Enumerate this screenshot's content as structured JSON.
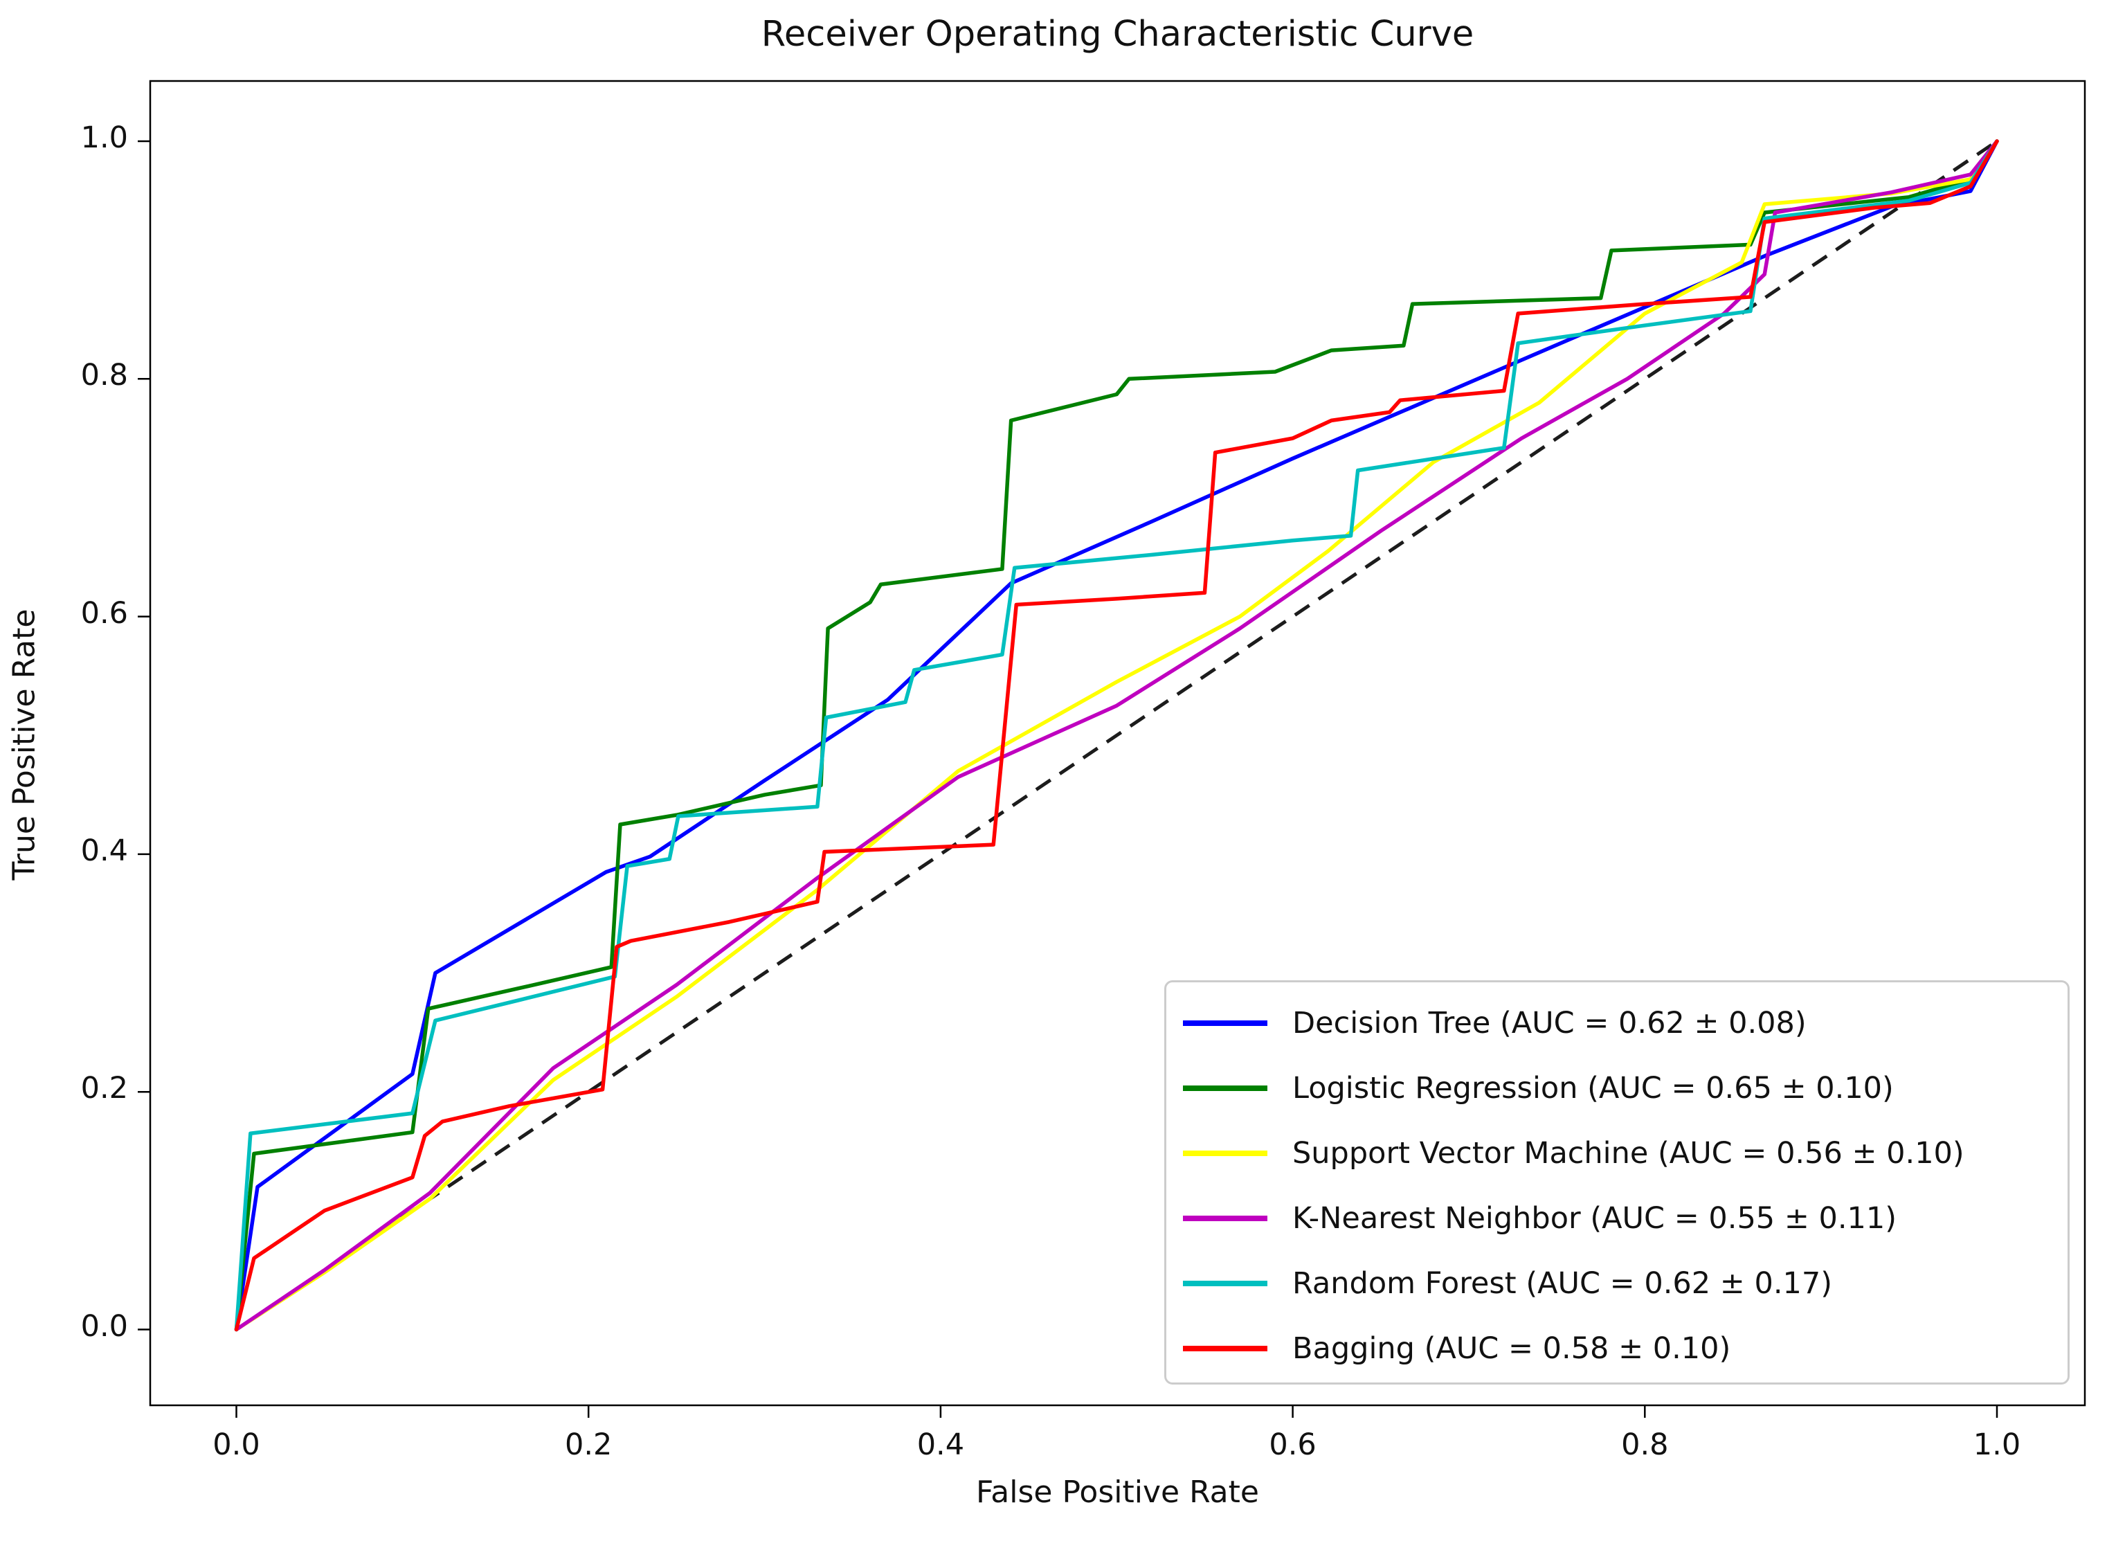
{
  "title": "Receiver Operating Characteristic Curve",
  "axes": {
    "xlabel": "False Positive Rate",
    "ylabel": "True Positive Rate",
    "x_ticks": [
      "0.0",
      "0.2",
      "0.4",
      "0.6",
      "0.8",
      "1.0"
    ],
    "y_ticks": [
      "0.0",
      "0.2",
      "0.4",
      "0.6",
      "0.8",
      "1.0"
    ],
    "x_tick_values": [
      0.0,
      0.2,
      0.4,
      0.6,
      0.8,
      1.0
    ],
    "y_tick_values": [
      0.0,
      0.2,
      0.4,
      0.6,
      0.8,
      1.0
    ]
  },
  "legend": [
    {
      "label": "Decision Tree (AUC = 0.62 ± 0.08)",
      "color": "#0000ff"
    },
    {
      "label": "Logistic Regression (AUC = 0.65 ± 0.10)",
      "color": "#008000"
    },
    {
      "label": "Support Vector Machine (AUC = 0.56 ± 0.10)",
      "color": "#ffff00"
    },
    {
      "label": "K-Nearest Neighbor (AUC = 0.55 ± 0.11)",
      "color": "#bf00bf"
    },
    {
      "label": "Random Forest (AUC = 0.62 ± 0.17)",
      "color": "#00bfbf"
    },
    {
      "label": "Bagging (AUC = 0.58 ± 0.10)",
      "color": "#ff0000"
    }
  ],
  "chart_data": {
    "type": "line",
    "title": "Receiver Operating Characteristic Curve",
    "xlabel": "False Positive Rate",
    "ylabel": "True Positive Rate",
    "xlim": [
      -0.05,
      1.05
    ],
    "ylim": [
      -0.05,
      1.05
    ],
    "grid": false,
    "legend_position": "lower right",
    "reference_line": {
      "name": "chance-diagonal",
      "style": "dashed",
      "color": "#1c1c1c",
      "points": [
        [
          0,
          0
        ],
        [
          1,
          1
        ]
      ]
    },
    "series": [
      {
        "key": "decision-tree",
        "name": "Decision Tree",
        "auc": "0.62 ± 0.08",
        "color": "#0000ff",
        "points": [
          [
            0,
            0
          ],
          [
            0.012,
            0.12
          ],
          [
            0.1,
            0.215
          ],
          [
            0.113,
            0.3
          ],
          [
            0.21,
            0.385
          ],
          [
            0.235,
            0.398
          ],
          [
            0.3,
            0.462
          ],
          [
            0.37,
            0.53
          ],
          [
            0.44,
            0.628
          ],
          [
            0.52,
            0.68
          ],
          [
            0.6,
            0.733
          ],
          [
            0.68,
            0.784
          ],
          [
            0.76,
            0.835
          ],
          [
            0.869,
            0.904
          ],
          [
            0.94,
            0.945
          ],
          [
            0.985,
            0.958
          ],
          [
            1,
            1
          ]
        ]
      },
      {
        "key": "logistic-regression",
        "name": "Logistic Regression",
        "auc": "0.65 ± 0.10",
        "color": "#008000",
        "points": [
          [
            0,
            0
          ],
          [
            0.01,
            0.148
          ],
          [
            0.1,
            0.166
          ],
          [
            0.109,
            0.27
          ],
          [
            0.16,
            0.287
          ],
          [
            0.213,
            0.305
          ],
          [
            0.218,
            0.425
          ],
          [
            0.25,
            0.433
          ],
          [
            0.3,
            0.45
          ],
          [
            0.332,
            0.458
          ],
          [
            0.336,
            0.59
          ],
          [
            0.36,
            0.612
          ],
          [
            0.366,
            0.627
          ],
          [
            0.435,
            0.64
          ],
          [
            0.44,
            0.765
          ],
          [
            0.5,
            0.787
          ],
          [
            0.507,
            0.8
          ],
          [
            0.59,
            0.806
          ],
          [
            0.622,
            0.824
          ],
          [
            0.663,
            0.828
          ],
          [
            0.668,
            0.863
          ],
          [
            0.775,
            0.868
          ],
          [
            0.781,
            0.908
          ],
          [
            0.86,
            0.913
          ],
          [
            0.868,
            0.94
          ],
          [
            0.95,
            0.953
          ],
          [
            0.985,
            0.968
          ],
          [
            1,
            1
          ]
        ]
      },
      {
        "key": "support-vector-machine",
        "name": "Support Vector Machine",
        "auc": "0.56 ± 0.10",
        "color": "#ffff00",
        "points": [
          [
            0,
            0
          ],
          [
            0.05,
            0.048
          ],
          [
            0.11,
            0.11
          ],
          [
            0.18,
            0.21
          ],
          [
            0.25,
            0.28
          ],
          [
            0.33,
            0.37
          ],
          [
            0.41,
            0.47
          ],
          [
            0.5,
            0.545
          ],
          [
            0.57,
            0.6
          ],
          [
            0.62,
            0.655
          ],
          [
            0.68,
            0.73
          ],
          [
            0.74,
            0.78
          ],
          [
            0.8,
            0.855
          ],
          [
            0.855,
            0.898
          ],
          [
            0.868,
            0.947
          ],
          [
            0.94,
            0.956
          ],
          [
            0.985,
            0.968
          ],
          [
            1,
            1
          ]
        ]
      },
      {
        "key": "k-nearest-neighbor",
        "name": "K-Nearest Neighbor",
        "auc": "0.55 ± 0.11",
        "color": "#bf00bf",
        "points": [
          [
            0,
            0
          ],
          [
            0.05,
            0.05
          ],
          [
            0.11,
            0.115
          ],
          [
            0.18,
            0.22
          ],
          [
            0.25,
            0.29
          ],
          [
            0.33,
            0.38
          ],
          [
            0.41,
            0.465
          ],
          [
            0.5,
            0.525
          ],
          [
            0.57,
            0.59
          ],
          [
            0.65,
            0.672
          ],
          [
            0.73,
            0.75
          ],
          [
            0.79,
            0.8
          ],
          [
            0.845,
            0.855
          ],
          [
            0.868,
            0.888
          ],
          [
            0.874,
            0.94
          ],
          [
            0.94,
            0.957
          ],
          [
            0.985,
            0.972
          ],
          [
            1,
            1
          ]
        ]
      },
      {
        "key": "random-forest",
        "name": "Random Forest",
        "auc": "0.62 ± 0.17",
        "color": "#00bfbf",
        "points": [
          [
            0,
            0
          ],
          [
            0.008,
            0.165
          ],
          [
            0.1,
            0.182
          ],
          [
            0.113,
            0.26
          ],
          [
            0.16,
            0.277
          ],
          [
            0.215,
            0.297
          ],
          [
            0.222,
            0.39
          ],
          [
            0.246,
            0.396
          ],
          [
            0.251,
            0.432
          ],
          [
            0.33,
            0.44
          ],
          [
            0.335,
            0.515
          ],
          [
            0.38,
            0.528
          ],
          [
            0.385,
            0.555
          ],
          [
            0.435,
            0.568
          ],
          [
            0.442,
            0.641
          ],
          [
            0.52,
            0.652
          ],
          [
            0.6,
            0.664
          ],
          [
            0.633,
            0.668
          ],
          [
            0.637,
            0.723
          ],
          [
            0.72,
            0.742
          ],
          [
            0.728,
            0.83
          ],
          [
            0.8,
            0.845
          ],
          [
            0.86,
            0.857
          ],
          [
            0.868,
            0.935
          ],
          [
            0.95,
            0.95
          ],
          [
            0.985,
            0.965
          ],
          [
            1,
            1
          ]
        ]
      },
      {
        "key": "bagging",
        "name": "Bagging",
        "auc": "0.58 ± 0.10",
        "color": "#ff0000",
        "points": [
          [
            0,
            0
          ],
          [
            0.01,
            0.06
          ],
          [
            0.05,
            0.1
          ],
          [
            0.1,
            0.128
          ],
          [
            0.107,
            0.163
          ],
          [
            0.117,
            0.175
          ],
          [
            0.155,
            0.188
          ],
          [
            0.208,
            0.202
          ],
          [
            0.216,
            0.322
          ],
          [
            0.224,
            0.327
          ],
          [
            0.28,
            0.343
          ],
          [
            0.33,
            0.36
          ],
          [
            0.334,
            0.402
          ],
          [
            0.43,
            0.408
          ],
          [
            0.443,
            0.61
          ],
          [
            0.5,
            0.615
          ],
          [
            0.55,
            0.62
          ],
          [
            0.556,
            0.738
          ],
          [
            0.6,
            0.75
          ],
          [
            0.622,
            0.765
          ],
          [
            0.655,
            0.772
          ],
          [
            0.661,
            0.782
          ],
          [
            0.72,
            0.79
          ],
          [
            0.728,
            0.855
          ],
          [
            0.8,
            0.863
          ],
          [
            0.86,
            0.869
          ],
          [
            0.868,
            0.932
          ],
          [
            0.93,
            0.944
          ],
          [
            0.962,
            0.948
          ],
          [
            0.985,
            0.962
          ],
          [
            1,
            1
          ]
        ]
      }
    ]
  }
}
